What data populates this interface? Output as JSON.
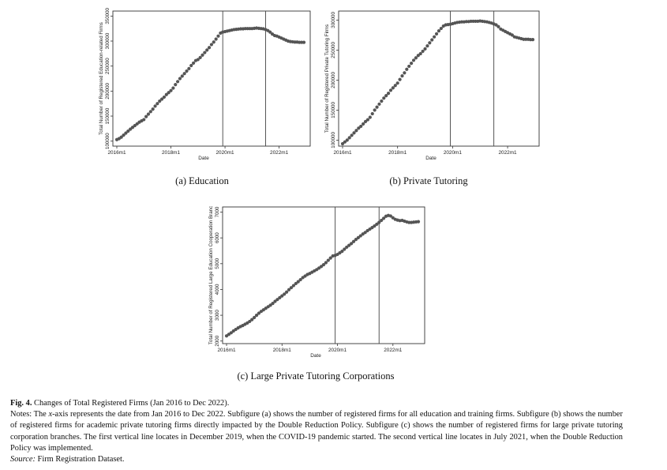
{
  "panels": [
    {
      "id": "a",
      "subcaption": "(a) Education",
      "chart_data": {
        "type": "scatter",
        "ylabel": "Total Number of Registered Education-related Firms",
        "xlabel": "Date",
        "x_ticks": [
          "2016m1",
          "2018m1",
          "2020m1",
          "2022m1"
        ],
        "y_ticks": [
          100000,
          150000,
          200000,
          250000,
          300000,
          350000
        ],
        "ylim": [
          90000,
          360000
        ],
        "vlines": [
          "2019m12",
          "2021m7"
        ],
        "grid": false,
        "x": "2016m1 to 2022m12, monthly",
        "y": [
          103000,
          105000,
          108000,
          112000,
          116000,
          120000,
          124000,
          127500,
          131000,
          134500,
          138000,
          140500,
          143000,
          149000,
          154000,
          159000,
          164000,
          170000,
          175000,
          180000,
          184000,
          188000,
          193000,
          197000,
          201000,
          206000,
          213000,
          219000,
          225000,
          230000,
          235000,
          240000,
          245000,
          251000,
          256000,
          261000,
          263000,
          267000,
          272000,
          277000,
          282000,
          287000,
          293000,
          298000,
          304000,
          310000,
          316000,
          318000,
          319000,
          320000,
          321000,
          322000,
          323000,
          323500,
          324000,
          324500,
          324500,
          325000,
          325000,
          325000,
          325000,
          325500,
          326000,
          325500,
          325000,
          324500,
          323000,
          321000,
          318000,
          314000,
          311000,
          310000,
          308000,
          306000,
          304000,
          302000,
          300000,
          299000,
          298500,
          298000,
          298000,
          297500,
          297500,
          297500
        ]
      }
    },
    {
      "id": "b",
      "subcaption": "(b) Private Tutoring",
      "chart_data": {
        "type": "scatter",
        "ylabel": "Total Number of Registered Private Tutoring Firms",
        "xlabel": "Date",
        "x_ticks": [
          "2016m1",
          "2018m1",
          "2020m1",
          "2022m1"
        ],
        "y_ticks": [
          100000,
          150000,
          200000,
          250000,
          300000
        ],
        "ylim": [
          90000,
          315000
        ],
        "vlines": [
          "2019m12",
          "2021m7"
        ],
        "grid": false,
        "x": "2016m1 to 2022m12, monthly",
        "y": [
          94000,
          97000,
          100000,
          104000,
          108000,
          112000,
          116000,
          120000,
          123000,
          127000,
          131000,
          134000,
          138000,
          144000,
          150000,
          155000,
          160000,
          165000,
          170000,
          174000,
          178000,
          183000,
          187000,
          191000,
          195000,
          201000,
          207000,
          212000,
          218000,
          223000,
          228000,
          233000,
          237000,
          241000,
          244000,
          248000,
          252000,
          257000,
          262000,
          267000,
          272000,
          277000,
          282000,
          286000,
          290000,
          292000,
          292500,
          293000,
          294000,
          295000,
          296000,
          296500,
          297000,
          297000,
          297500,
          297500,
          298000,
          298000,
          298000,
          298000,
          298500,
          298000,
          297500,
          297000,
          296000,
          295000,
          293500,
          292000,
          289000,
          285000,
          283000,
          281000,
          279000,
          277000,
          275000,
          272000,
          271000,
          270000,
          269000,
          268000,
          268000,
          268000,
          267500,
          267500
        ]
      }
    },
    {
      "id": "c",
      "subcaption": "(c) Large Private Tutoring Corporations",
      "chart_data": {
        "type": "scatter",
        "ylabel": "Total Number of Registered Large Education Cooperation Branc",
        "xlabel": "Date",
        "x_ticks": [
          "2016m1",
          "2018m1",
          "2020m1",
          "2022m1"
        ],
        "y_ticks": [
          2000,
          3000,
          4000,
          5000,
          6000,
          7000
        ],
        "ylim": [
          1900,
          7200
        ],
        "vlines": [
          "2019m12",
          "2021m7"
        ],
        "grid": false,
        "x": "2016m1 to 2022m12, monthly",
        "y": [
          2200,
          2260,
          2320,
          2390,
          2450,
          2510,
          2560,
          2600,
          2650,
          2700,
          2760,
          2830,
          2910,
          3000,
          3080,
          3150,
          3210,
          3270,
          3330,
          3390,
          3460,
          3540,
          3610,
          3680,
          3750,
          3820,
          3900,
          3990,
          4070,
          4150,
          4230,
          4300,
          4380,
          4460,
          4520,
          4580,
          4620,
          4670,
          4720,
          4770,
          4830,
          4890,
          4960,
          5040,
          5130,
          5220,
          5300,
          5320,
          5360,
          5420,
          5480,
          5560,
          5640,
          5710,
          5780,
          5860,
          5940,
          6010,
          6080,
          6150,
          6210,
          6280,
          6340,
          6400,
          6460,
          6530,
          6600,
          6680,
          6760,
          6840,
          6870,
          6850,
          6780,
          6720,
          6690,
          6670,
          6680,
          6650,
          6620,
          6600,
          6600,
          6610,
          6620,
          6630
        ]
      }
    }
  ],
  "caption": {
    "label": "Fig. 4.",
    "title": "Changes of Total Registered Firms (Jan 2016 to Dec 2022).",
    "notes_prefix": "Notes: The",
    "notes_var": "x",
    "notes_text": "-axis represents the date from Jan 2016 to Dec 2022. Subfigure (a) shows the number of registered firms for all education and training firms. Subfigure (b) shows the number of registered firms for academic private tutoring firms directly impacted by the Double Reduction Policy. Subfigure (c) shows the number of registered firms for large private tutoring corporation branches. The first vertical line locates in December 2019, when the COVID-19 pandemic started. The second vertical line locates in July 2021, when the Double Reduction Policy was implemented.",
    "source_label": "Source:",
    "source_text": "Firm Registration Dataset."
  },
  "colors": {
    "marker": "#555555",
    "axis": "#333333",
    "vline": "#444444"
  }
}
